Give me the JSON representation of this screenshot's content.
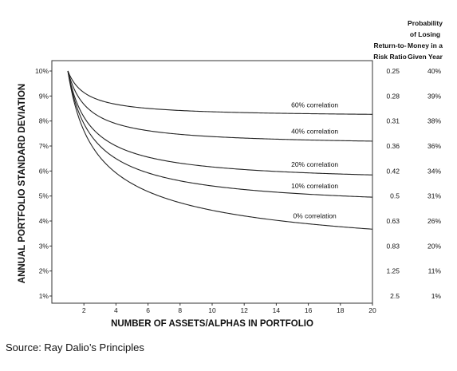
{
  "chart_data": {
    "type": "line",
    "xlabel": "NUMBER OF ASSETS/ALPHAS IN PORTFOLIO",
    "ylabel": "ANNUAL PORTFOLIO STANDARD DEVIATION",
    "xlim": [
      0,
      20
    ],
    "ylim": [
      1,
      10
    ],
    "x_ticks": [
      "2",
      "4",
      "6",
      "8",
      "10",
      "12",
      "14",
      "16",
      "18",
      "20"
    ],
    "y_ticks": [
      "1%",
      "2%",
      "3%",
      "4%",
      "5%",
      "6%",
      "7%",
      "8%",
      "9%",
      "10%"
    ],
    "series": [
      {
        "name": "60% correlation",
        "rho": 0.6
      },
      {
        "name": "40% correlation",
        "rho": 0.4
      },
      {
        "name": "20% correlation",
        "rho": 0.2
      },
      {
        "name": "10% correlation",
        "rho": 0.1
      },
      {
        "name": "0% correlation",
        "rho": 0.0
      }
    ],
    "x": [
      1,
      2,
      3,
      4,
      5,
      6,
      7,
      8,
      9,
      10,
      11,
      12,
      13,
      14,
      15,
      16,
      17,
      18,
      19,
      20
    ],
    "table": {
      "col1_header": [
        "Return-to-",
        "Risk Ratio"
      ],
      "col2_header": [
        "Probability",
        "of Losing",
        "Money in a",
        "Given Year"
      ],
      "rows": [
        [
          "0.25",
          "40%"
        ],
        [
          "0.28",
          "39%"
        ],
        [
          "0.31",
          "38%"
        ],
        [
          "0.36",
          "36%"
        ],
        [
          "0.42",
          "34%"
        ],
        [
          "0.5",
          "31%"
        ],
        [
          "0.63",
          "26%"
        ],
        [
          "0.83",
          "20%"
        ],
        [
          "1.25",
          "11%"
        ],
        [
          "2.5",
          "1%"
        ]
      ]
    }
  },
  "source": "Source: Ray Dalio’s Principles"
}
